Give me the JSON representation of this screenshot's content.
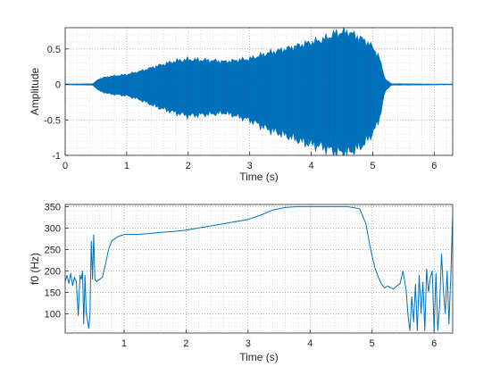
{
  "chart_data": [
    {
      "type": "line",
      "title": "",
      "xlabel": "Time (s)",
      "ylabel": "Amplitude",
      "xlim": [
        0,
        6.3
      ],
      "ylim": [
        -1,
        0.8
      ],
      "xticks": [
        0,
        1,
        2,
        3,
        4,
        5,
        6
      ],
      "yticks": [
        -1,
        -0.5,
        0,
        0.5
      ],
      "xtick_labels": [
        "0",
        "1",
        "2",
        "3",
        "4",
        "5",
        "6"
      ],
      "ytick_labels": [
        "-1",
        "-0.5",
        "0",
        "0.5"
      ],
      "grid": "major and minor, dotted",
      "color": "#0072bd",
      "envelope": {
        "t": [
          0,
          0.45,
          0.55,
          0.7,
          1.0,
          1.2,
          1.5,
          1.8,
          2.0,
          2.3,
          2.6,
          3.0,
          3.3,
          3.6,
          3.9,
          4.2,
          4.4,
          4.6,
          4.8,
          4.95,
          5.1,
          5.2,
          5.3,
          6.3
        ],
        "upper": [
          0.005,
          0.01,
          0.08,
          0.11,
          0.14,
          0.18,
          0.26,
          0.33,
          0.35,
          0.34,
          0.32,
          0.36,
          0.44,
          0.5,
          0.57,
          0.63,
          0.72,
          0.74,
          0.65,
          0.57,
          0.4,
          0.08,
          0.01,
          0.005
        ],
        "lower": [
          -0.005,
          -0.01,
          -0.09,
          -0.13,
          -0.16,
          -0.21,
          -0.32,
          -0.4,
          -0.44,
          -0.42,
          -0.4,
          -0.5,
          -0.63,
          -0.72,
          -0.82,
          -0.88,
          -0.95,
          -0.96,
          -0.88,
          -0.75,
          -0.52,
          -0.1,
          -0.01,
          -0.005
        ]
      }
    },
    {
      "type": "line",
      "title": "",
      "xlabel": "Time (s)",
      "ylabel": "f0 (Hz)",
      "xlim": [
        0.05,
        6.3
      ],
      "ylim": [
        55,
        355
      ],
      "xticks": [
        1,
        2,
        3,
        4,
        5,
        6
      ],
      "yticks": [
        100,
        150,
        200,
        250,
        300,
        350
      ],
      "xtick_labels": [
        "1",
        "2",
        "3",
        "4",
        "5",
        "6"
      ],
      "ytick_labels": [
        "100",
        "150",
        "200",
        "250",
        "300",
        "350"
      ],
      "grid": "major and minor, dotted",
      "color": "#0072bd",
      "x": [
        0.05,
        0.08,
        0.11,
        0.14,
        0.17,
        0.2,
        0.23,
        0.26,
        0.29,
        0.31,
        0.33,
        0.35,
        0.37,
        0.39,
        0.41,
        0.43,
        0.45,
        0.47,
        0.49,
        0.51,
        0.53,
        0.56,
        0.6,
        0.65,
        0.7,
        0.75,
        0.8,
        0.9,
        1.0,
        1.2,
        1.4,
        1.6,
        1.8,
        2.0,
        2.2,
        2.4,
        2.6,
        2.8,
        3.0,
        3.2,
        3.4,
        3.6,
        3.8,
        4.0,
        4.2,
        4.4,
        4.6,
        4.8,
        4.9,
        4.95,
        5.0,
        5.05,
        5.1,
        5.15,
        5.2,
        5.25,
        5.3,
        5.35,
        5.4,
        5.45,
        5.5,
        5.55,
        5.58,
        5.61,
        5.64,
        5.67,
        5.7,
        5.73,
        5.76,
        5.79,
        5.82,
        5.85,
        5.88,
        5.91,
        5.94,
        5.97,
        6.0,
        6.03,
        6.06,
        6.09,
        6.12,
        6.15,
        6.18,
        6.21,
        6.24,
        6.27,
        6.3
      ],
      "y": [
        175,
        190,
        170,
        195,
        165,
        185,
        175,
        95,
        190,
        180,
        200,
        75,
        190,
        100,
        85,
        65,
        100,
        270,
        180,
        285,
        180,
        175,
        180,
        185,
        215,
        250,
        270,
        280,
        285,
        285,
        287,
        290,
        292,
        295,
        300,
        305,
        310,
        315,
        320,
        330,
        342,
        348,
        350,
        350,
        350,
        350,
        350,
        345,
        310,
        270,
        235,
        205,
        185,
        170,
        160,
        165,
        160,
        158,
        165,
        170,
        200,
        155,
        95,
        60,
        140,
        80,
        170,
        60,
        190,
        100,
        175,
        60,
        205,
        150,
        185,
        200,
        60,
        195,
        60,
        120,
        240,
        155,
        100,
        200,
        75,
        190,
        330
      ]
    }
  ]
}
